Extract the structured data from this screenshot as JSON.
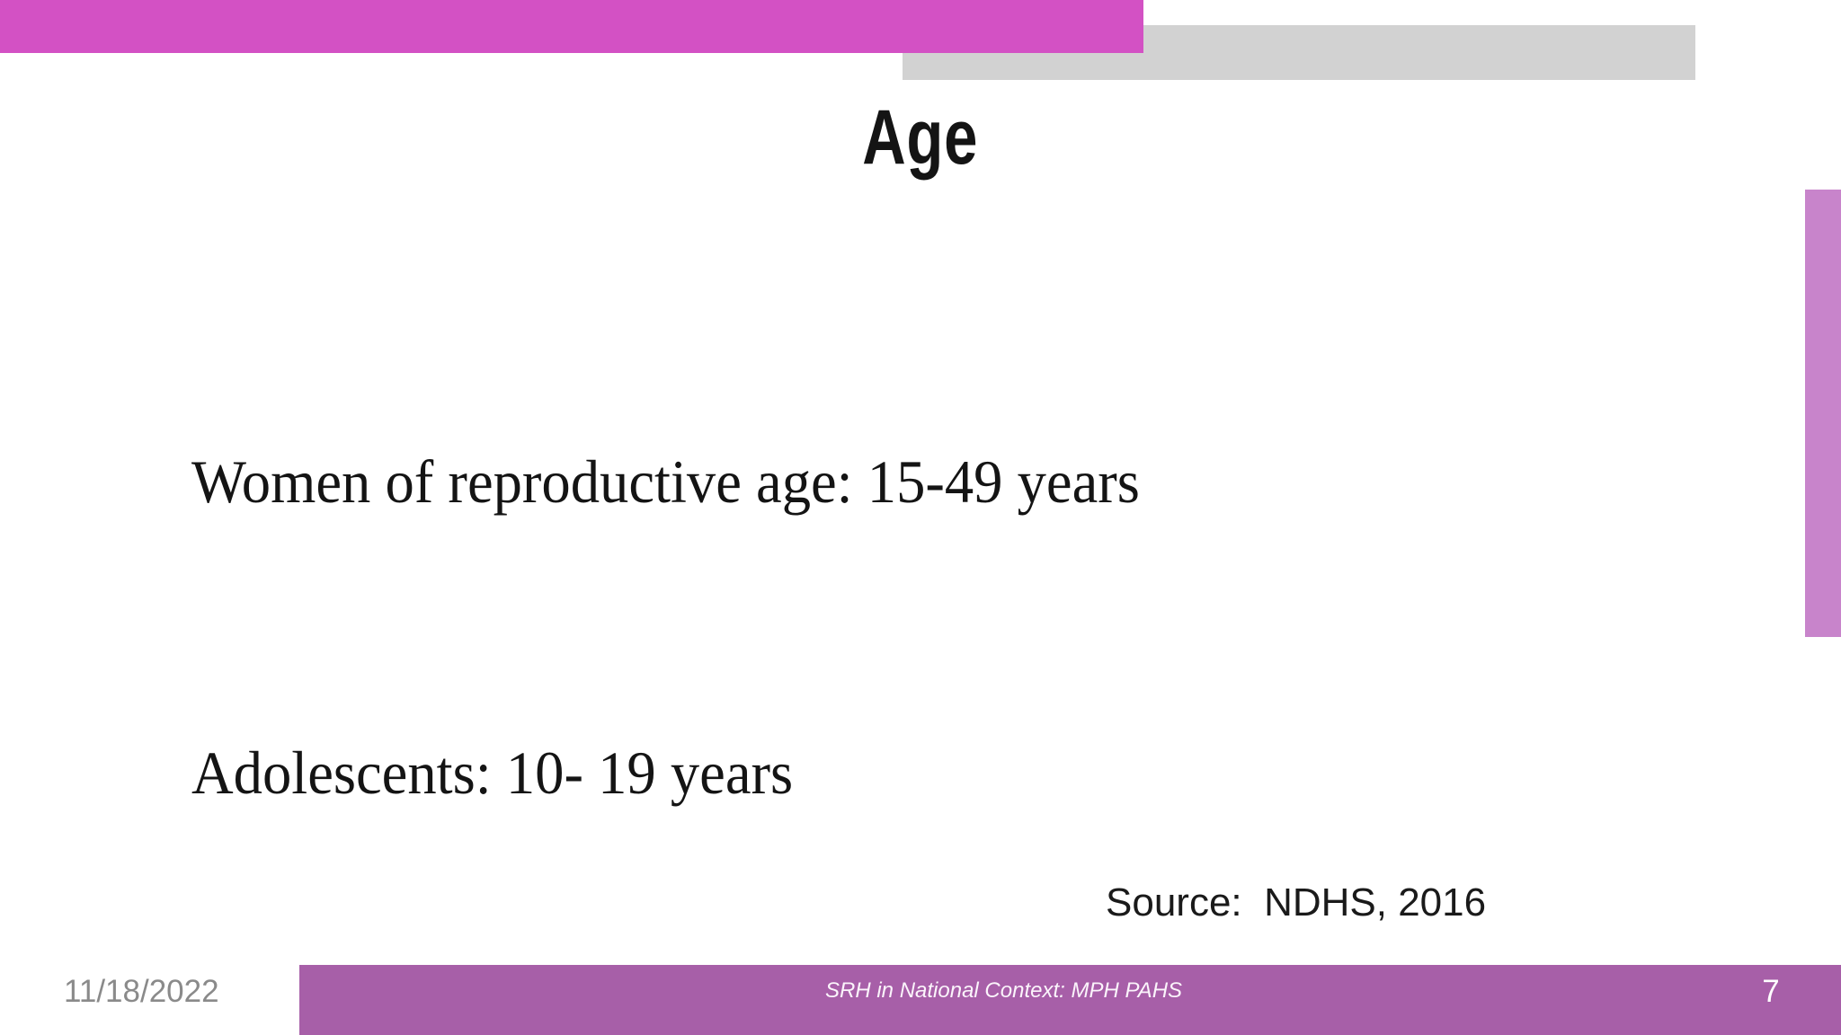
{
  "slide": {
    "title": "Age",
    "body_lines": {
      "0": "Women of reproductive age: 15-49 years",
      "1": "Adolescents: 10- 19 years"
    },
    "source": "Source:  NDHS, 2016",
    "footer": {
      "date": "11/18/2022",
      "caption": "SRH in National Context: MPH PAHS",
      "page_number": "7"
    },
    "colors": {
      "top_bar": "#d351c4",
      "gray_bar": "#d2d2d2",
      "right_bar": "#c884cb",
      "footer_bar": "#a75fa8"
    }
  }
}
